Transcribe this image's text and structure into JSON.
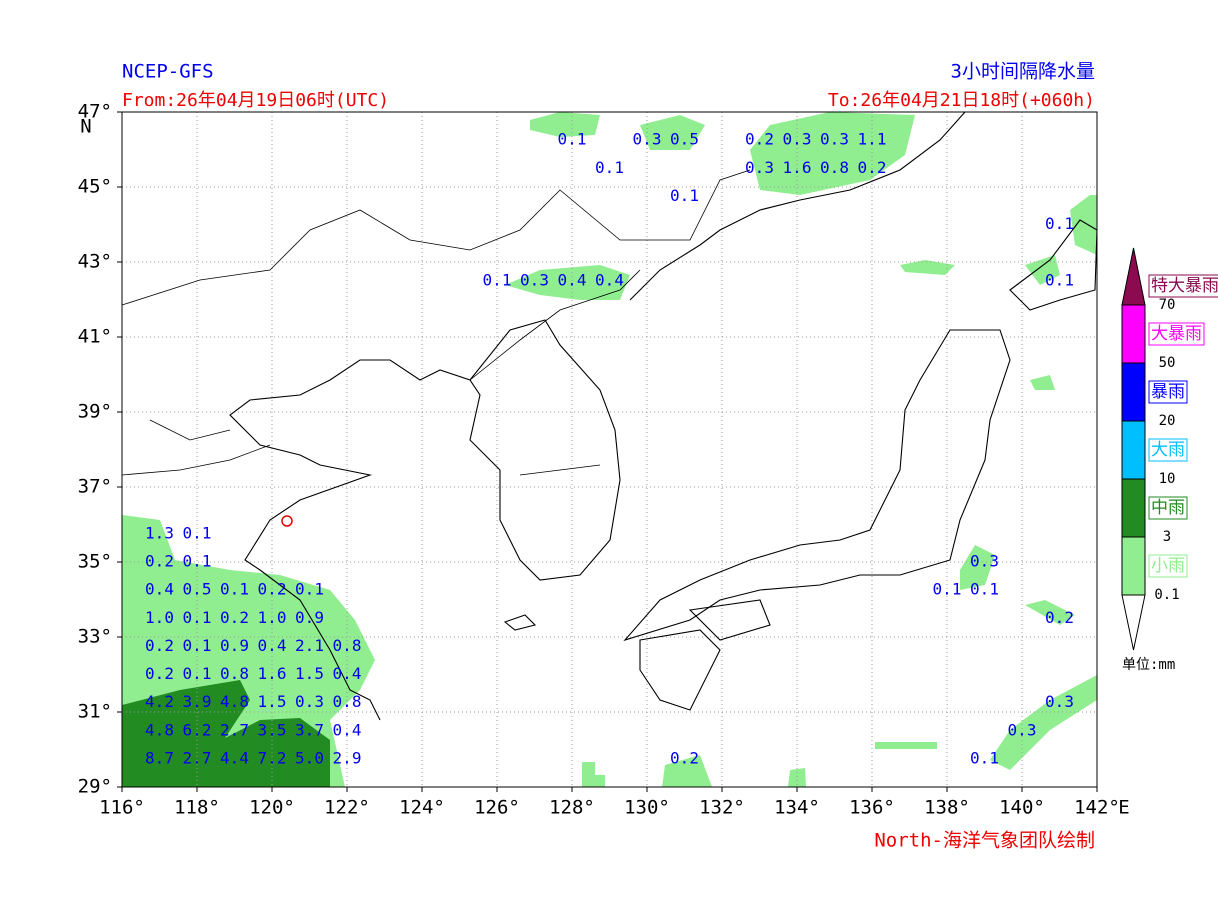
{
  "header": {
    "model": "NCEP-GFS",
    "from": "From:26年04月19日06时(UTC)",
    "title": "3小时间隔降水量",
    "to": "To:26年04月21日18时(+060h)"
  },
  "footer": "North-海洋气象团队绘制",
  "map": {
    "xlim": [
      116,
      142
    ],
    "ylim": [
      29,
      47
    ],
    "xticks": [
      {
        "value": 116,
        "label": "116°"
      },
      {
        "value": 118,
        "label": "118°"
      },
      {
        "value": 120,
        "label": "120°"
      },
      {
        "value": 122,
        "label": "122°"
      },
      {
        "value": 124,
        "label": "124°"
      },
      {
        "value": 126,
        "label": "126°"
      },
      {
        "value": 128,
        "label": "128°"
      },
      {
        "value": 130,
        "label": "130°"
      },
      {
        "value": 132,
        "label": "132°"
      },
      {
        "value": 134,
        "label": "134°"
      },
      {
        "value": 136,
        "label": "136°"
      },
      {
        "value": 138,
        "label": "138°"
      },
      {
        "value": 140,
        "label": "140°"
      },
      {
        "value": 142,
        "label": "142°"
      }
    ],
    "yticks": [
      {
        "value": 29,
        "label": "29°"
      },
      {
        "value": 31,
        "label": "31°"
      },
      {
        "value": 33,
        "label": "33°"
      },
      {
        "value": 35,
        "label": "35°"
      },
      {
        "value": 37,
        "label": "37°"
      },
      {
        "value": 39,
        "label": "39°"
      },
      {
        "value": 41,
        "label": "41°"
      },
      {
        "value": 43,
        "label": "43°"
      },
      {
        "value": 45,
        "label": "45°"
      },
      {
        "value": 47,
        "label": "47°"
      }
    ],
    "xunit": "E",
    "yunit": "N",
    "labels": [
      {
        "lon": 128,
        "lat": 46.25,
        "text": "0.1"
      },
      {
        "lon": 130,
        "lat": 46.25,
        "text": "0.3"
      },
      {
        "lon": 131,
        "lat": 46.25,
        "text": "0.5"
      },
      {
        "lon": 133,
        "lat": 46.25,
        "text": "0.2"
      },
      {
        "lon": 134,
        "lat": 46.25,
        "text": "0.3"
      },
      {
        "lon": 135,
        "lat": 46.25,
        "text": "0.3"
      },
      {
        "lon": 136,
        "lat": 46.25,
        "text": "1.1"
      },
      {
        "lon": 129,
        "lat": 45.5,
        "text": "0.1"
      },
      {
        "lon": 133,
        "lat": 45.5,
        "text": "0.3"
      },
      {
        "lon": 134,
        "lat": 45.5,
        "text": "1.6"
      },
      {
        "lon": 135,
        "lat": 45.5,
        "text": "0.8"
      },
      {
        "lon": 136,
        "lat": 45.5,
        "text": "0.2"
      },
      {
        "lon": 131,
        "lat": 44.75,
        "text": "0.1"
      },
      {
        "lon": 141,
        "lat": 44.0,
        "text": "0.1"
      },
      {
        "lon": 126,
        "lat": 42.5,
        "text": "0.1"
      },
      {
        "lon": 127,
        "lat": 42.5,
        "text": "0.3"
      },
      {
        "lon": 128,
        "lat": 42.5,
        "text": "0.4"
      },
      {
        "lon": 129,
        "lat": 42.5,
        "text": "0.4"
      },
      {
        "lon": 141,
        "lat": 42.5,
        "text": "0.1"
      },
      {
        "lon": 117,
        "lat": 35.75,
        "text": "1.3"
      },
      {
        "lon": 118,
        "lat": 35.75,
        "text": "0.1"
      },
      {
        "lon": 117,
        "lat": 35.0,
        "text": "0.2"
      },
      {
        "lon": 118,
        "lat": 35.0,
        "text": "0.1"
      },
      {
        "lon": 139,
        "lat": 35.0,
        "text": "0.3"
      },
      {
        "lon": 117,
        "lat": 34.25,
        "text": "0.4"
      },
      {
        "lon": 118,
        "lat": 34.25,
        "text": "0.5"
      },
      {
        "lon": 119,
        "lat": 34.25,
        "text": "0.1"
      },
      {
        "lon": 120,
        "lat": 34.25,
        "text": "0.2"
      },
      {
        "lon": 121,
        "lat": 34.25,
        "text": "0.1"
      },
      {
        "lon": 138,
        "lat": 34.25,
        "text": "0.1"
      },
      {
        "lon": 139,
        "lat": 34.25,
        "text": "0.1"
      },
      {
        "lon": 117,
        "lat": 33.5,
        "text": "1.0"
      },
      {
        "lon": 118,
        "lat": 33.5,
        "text": "0.1"
      },
      {
        "lon": 119,
        "lat": 33.5,
        "text": "0.2"
      },
      {
        "lon": 120,
        "lat": 33.5,
        "text": "1.0"
      },
      {
        "lon": 121,
        "lat": 33.5,
        "text": "0.9"
      },
      {
        "lon": 141,
        "lat": 33.5,
        "text": "0.2"
      },
      {
        "lon": 117,
        "lat": 32.75,
        "text": "0.2"
      },
      {
        "lon": 118,
        "lat": 32.75,
        "text": "0.1"
      },
      {
        "lon": 119,
        "lat": 32.75,
        "text": "0.9"
      },
      {
        "lon": 120,
        "lat": 32.75,
        "text": "0.4"
      },
      {
        "lon": 121,
        "lat": 32.75,
        "text": "2.1"
      },
      {
        "lon": 122,
        "lat": 32.75,
        "text": "0.8"
      },
      {
        "lon": 117,
        "lat": 32.0,
        "text": "0.2"
      },
      {
        "lon": 118,
        "lat": 32.0,
        "text": "0.1"
      },
      {
        "lon": 119,
        "lat": 32.0,
        "text": "0.8"
      },
      {
        "lon": 120,
        "lat": 32.0,
        "text": "1.6"
      },
      {
        "lon": 121,
        "lat": 32.0,
        "text": "1.5"
      },
      {
        "lon": 122,
        "lat": 32.0,
        "text": "0.4"
      },
      {
        "lon": 117,
        "lat": 31.25,
        "text": "4.2"
      },
      {
        "lon": 118,
        "lat": 31.25,
        "text": "3.9"
      },
      {
        "lon": 119,
        "lat": 31.25,
        "text": "4.8"
      },
      {
        "lon": 120,
        "lat": 31.25,
        "text": "1.5"
      },
      {
        "lon": 121,
        "lat": 31.25,
        "text": "0.3"
      },
      {
        "lon": 122,
        "lat": 31.25,
        "text": "0.8"
      },
      {
        "lon": 141,
        "lat": 31.25,
        "text": "0.3"
      },
      {
        "lon": 117,
        "lat": 30.5,
        "text": "4.8"
      },
      {
        "lon": 118,
        "lat": 30.5,
        "text": "6.2"
      },
      {
        "lon": 119,
        "lat": 30.5,
        "text": "2.7"
      },
      {
        "lon": 120,
        "lat": 30.5,
        "text": "3.5"
      },
      {
        "lon": 121,
        "lat": 30.5,
        "text": "3.7"
      },
      {
        "lon": 122,
        "lat": 30.5,
        "text": "0.4"
      },
      {
        "lon": 140,
        "lat": 30.5,
        "text": "0.3"
      },
      {
        "lon": 117,
        "lat": 29.75,
        "text": "8.7"
      },
      {
        "lon": 118,
        "lat": 29.75,
        "text": "2.7"
      },
      {
        "lon": 119,
        "lat": 29.75,
        "text": "4.4"
      },
      {
        "lon": 120,
        "lat": 29.75,
        "text": "7.2"
      },
      {
        "lon": 121,
        "lat": 29.75,
        "text": "5.0"
      },
      {
        "lon": 122,
        "lat": 29.75,
        "text": "2.9"
      },
      {
        "lon": 131,
        "lat": 29.75,
        "text": "0.2"
      },
      {
        "lon": 139,
        "lat": 29.75,
        "text": "0.1"
      }
    ]
  },
  "legend": {
    "levels": [
      {
        "name": "小雨",
        "color": "#90ee90"
      },
      {
        "name": "中雨",
        "color": "#228b22"
      },
      {
        "name": "大雨",
        "color": "#00bfff"
      },
      {
        "name": "暴雨",
        "color": "#0000ff"
      },
      {
        "name": "大暴雨",
        "color": "#ff00ff"
      },
      {
        "name": "特大暴雨",
        "color": "#8b0a50"
      }
    ],
    "thresholds": [
      0.1,
      3,
      10,
      20,
      50,
      70
    ],
    "unit": "单位:mm"
  }
}
